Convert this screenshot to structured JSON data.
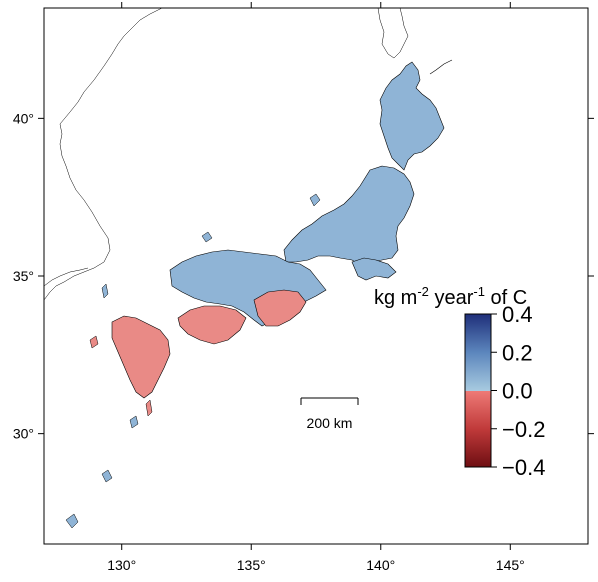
{
  "map": {
    "lon_range": [
      127,
      148
    ],
    "lat_range": [
      26.5,
      43.5
    ],
    "x_ticks": [
      {
        "value": 130,
        "label": "130°"
      },
      {
        "value": 135,
        "label": "135°"
      },
      {
        "value": 140,
        "label": "140°"
      },
      {
        "value": 145,
        "label": "145°"
      }
    ],
    "y_ticks": [
      {
        "value": 40,
        "label": "40°"
      },
      {
        "value": 35,
        "label": "35°"
      },
      {
        "value": 30,
        "label": "30°"
      }
    ],
    "scale_bar": {
      "label": "200 km",
      "length_km": 200
    },
    "colorbar": {
      "unit_base": "kg m",
      "unit_exp1": "-2",
      "unit_mid": " year",
      "unit_exp2": "-1",
      "unit_tail": " of C",
      "range": [
        -0.4,
        0.4
      ],
      "ticks": [
        {
          "value": 0.4,
          "label": "0.4"
        },
        {
          "value": 0.2,
          "label": "0.2"
        },
        {
          "value": 0.0,
          "label": "0.0"
        },
        {
          "value": -0.2,
          "label": "−0.2"
        },
        {
          "value": -0.4,
          "label": "−0.4"
        }
      ],
      "colors": {
        "pos_max": "#1f2f7a",
        "pos_mid": "#5c86bd",
        "pos_min": "#a8cbe0",
        "neg_min": "#ee7a76",
        "neg_mid": "#c03a3a",
        "neg_max": "#6e0e12"
      }
    },
    "colors": {
      "land_pos": "#8fb4d6",
      "land_pos_dark": "#4e74b0",
      "land_neg": "#e98a86",
      "land_neg_dark": "#c64848",
      "coast": "#000000"
    }
  }
}
